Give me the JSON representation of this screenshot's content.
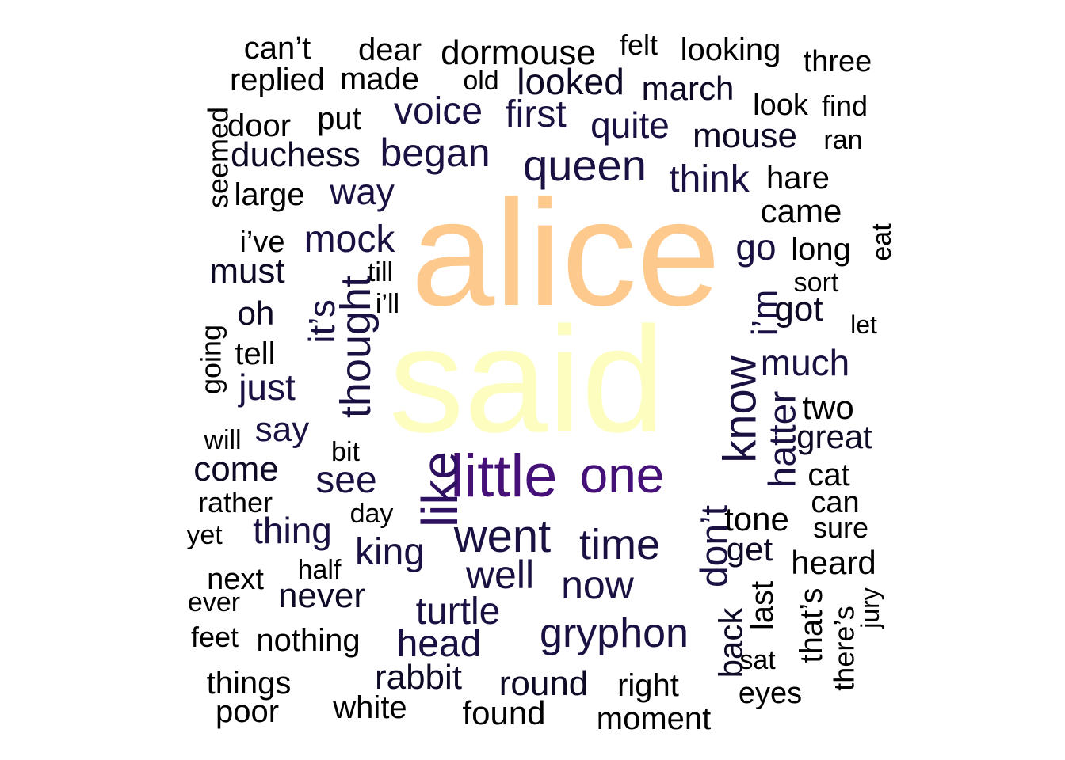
{
  "word_cloud": {
    "palette": {
      "c0": "#000000",
      "c1": "#0d0a26",
      "c2": "#1a1042",
      "c3": "#2e1060",
      "c4": "#451077",
      "c5": "#fec98d",
      "c6": "#fcfdbf"
    },
    "words": [
      {
        "text": "alice",
        "color": "c5"
      },
      {
        "text": "said",
        "color": "c6"
      },
      {
        "text": "little",
        "color": "c4"
      },
      {
        "text": "one",
        "color": "c4"
      },
      {
        "text": "like",
        "color": "c3"
      },
      {
        "text": "went",
        "color": "c2"
      },
      {
        "text": "know",
        "color": "c2"
      },
      {
        "text": "queen",
        "color": "c2"
      },
      {
        "text": "thought",
        "color": "c2"
      },
      {
        "text": "time",
        "color": "c2"
      },
      {
        "text": "gryphon",
        "color": "c2"
      },
      {
        "text": "began",
        "color": "c2"
      },
      {
        "text": "well",
        "color": "c2"
      },
      {
        "text": "now",
        "color": "c2"
      },
      {
        "text": "don’t",
        "color": "c2"
      },
      {
        "text": "turtle",
        "color": "c2"
      },
      {
        "text": "king",
        "color": "c2"
      },
      {
        "text": "mock",
        "color": "c2"
      },
      {
        "text": "hatter",
        "color": "c2"
      },
      {
        "text": "voice",
        "color": "c2"
      },
      {
        "text": "first",
        "color": "c2"
      },
      {
        "text": "quite",
        "color": "c2"
      },
      {
        "text": "looked",
        "color": "c1"
      },
      {
        "text": "see",
        "color": "c2"
      },
      {
        "text": "it’s",
        "color": "c2"
      },
      {
        "text": "much",
        "color": "c2"
      },
      {
        "text": "i’m",
        "color": "c2"
      },
      {
        "text": "head",
        "color": "c2"
      },
      {
        "text": "think",
        "color": "c2"
      },
      {
        "text": "way",
        "color": "c2"
      },
      {
        "text": "go",
        "color": "c2"
      },
      {
        "text": "say",
        "color": "c2"
      },
      {
        "text": "thing",
        "color": "c2"
      },
      {
        "text": "just",
        "color": "c2"
      },
      {
        "text": "never",
        "color": "c1"
      },
      {
        "text": "rabbit",
        "color": "c1"
      },
      {
        "text": "round",
        "color": "c1"
      },
      {
        "text": "got",
        "color": "c1"
      },
      {
        "text": "duchess",
        "color": "c1"
      },
      {
        "text": "mouse",
        "color": "c1"
      },
      {
        "text": "come",
        "color": "c1"
      },
      {
        "text": "march",
        "color": "c1"
      },
      {
        "text": "get",
        "color": "c1"
      },
      {
        "text": "great",
        "color": "c1"
      },
      {
        "text": "must",
        "color": "c1"
      },
      {
        "text": "oh",
        "color": "c1"
      },
      {
        "text": "back",
        "color": "c1"
      },
      {
        "text": "dormouse",
        "color": "c0"
      },
      {
        "text": "came",
        "color": "c0"
      },
      {
        "text": "heard",
        "color": "c0"
      },
      {
        "text": "tone",
        "color": "c0"
      },
      {
        "text": "found",
        "color": "c0"
      },
      {
        "text": "hare",
        "color": "c0"
      },
      {
        "text": "two",
        "color": "c0"
      },
      {
        "text": "tell",
        "color": "c0"
      },
      {
        "text": "long",
        "color": "c0"
      },
      {
        "text": "nothing",
        "color": "c0"
      },
      {
        "text": "right",
        "color": "c0"
      },
      {
        "text": "moment",
        "color": "c0"
      },
      {
        "text": "looking",
        "color": "c0"
      },
      {
        "text": "put",
        "color": "c0"
      },
      {
        "text": "large",
        "color": "c0"
      },
      {
        "text": "white",
        "color": "c0"
      },
      {
        "text": "cat",
        "color": "c0"
      },
      {
        "text": "can",
        "color": "c0"
      },
      {
        "text": "three",
        "color": "c0"
      },
      {
        "text": "door",
        "color": "c0"
      },
      {
        "text": "replied",
        "color": "c0"
      },
      {
        "text": "made",
        "color": "c0"
      },
      {
        "text": "dear",
        "color": "c0"
      },
      {
        "text": "can’t",
        "color": "c0"
      },
      {
        "text": "things",
        "color": "c0"
      },
      {
        "text": "poor",
        "color": "c0"
      },
      {
        "text": "look",
        "color": "c0"
      },
      {
        "text": "find",
        "color": "c0"
      },
      {
        "text": "last",
        "color": "c0"
      },
      {
        "text": "i’ve",
        "color": "c0"
      },
      {
        "text": "eyes",
        "color": "c0"
      },
      {
        "text": "that’s",
        "color": "c0"
      },
      {
        "text": "next",
        "color": "c0"
      },
      {
        "text": "seemed",
        "color": "c0"
      },
      {
        "text": "rather",
        "color": "c0"
      },
      {
        "text": "sure",
        "color": "c0"
      },
      {
        "text": "there’s",
        "color": "c0"
      },
      {
        "text": "felt",
        "color": "c0"
      },
      {
        "text": "going",
        "color": "c0"
      },
      {
        "text": "feet",
        "color": "c0"
      },
      {
        "text": "sort",
        "color": "c0"
      },
      {
        "text": "ran",
        "color": "c0"
      },
      {
        "text": "yet",
        "color": "c0"
      },
      {
        "text": "old",
        "color": "c0"
      },
      {
        "text": "will",
        "color": "c0"
      },
      {
        "text": "half",
        "color": "c0"
      },
      {
        "text": "day",
        "color": "c0"
      },
      {
        "text": "till",
        "color": "c0"
      },
      {
        "text": "i’ll",
        "color": "c0"
      },
      {
        "text": "bit",
        "color": "c0"
      },
      {
        "text": "sat",
        "color": "c0"
      },
      {
        "text": "ever",
        "color": "c0"
      },
      {
        "text": "eat",
        "color": "c0"
      },
      {
        "text": "let",
        "color": "c0"
      },
      {
        "text": "jury",
        "color": "c0"
      }
    ]
  }
}
